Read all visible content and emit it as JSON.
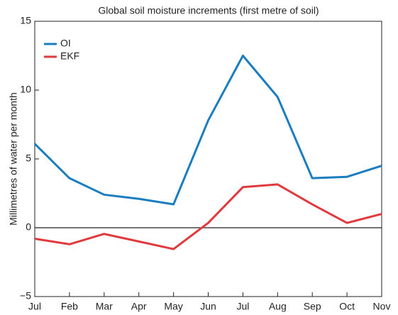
{
  "chart_data": {
    "type": "line",
    "title": "Global soil moisture increments (first metre of soil)",
    "y_label": "Millimetres of water per month",
    "categories": [
      "Jul",
      "Feb",
      "Mar",
      "Apr",
      "May",
      "Jun",
      "Jul",
      "Aug",
      "Sep",
      "Oct",
      "Nov"
    ],
    "series": [
      {
        "name": "OI",
        "color": "#1a7dc0",
        "values": [
          6.1,
          3.6,
          2.4,
          2.1,
          1.7,
          7.8,
          12.5,
          9.5,
          3.6,
          3.7,
          4.5
        ]
      },
      {
        "name": "EKF",
        "color": "#e03a3e",
        "values": [
          -0.8,
          -1.2,
          -0.45,
          -1.0,
          -1.55,
          0.35,
          2.95,
          3.15,
          1.7,
          0.35,
          1.0
        ]
      }
    ],
    "ylim": [
      -5,
      15
    ],
    "yticks": [
      {
        "value": -5,
        "label": "−5"
      },
      0,
      5,
      10,
      15
    ],
    "zero_line": true,
    "legend": "upper left"
  }
}
